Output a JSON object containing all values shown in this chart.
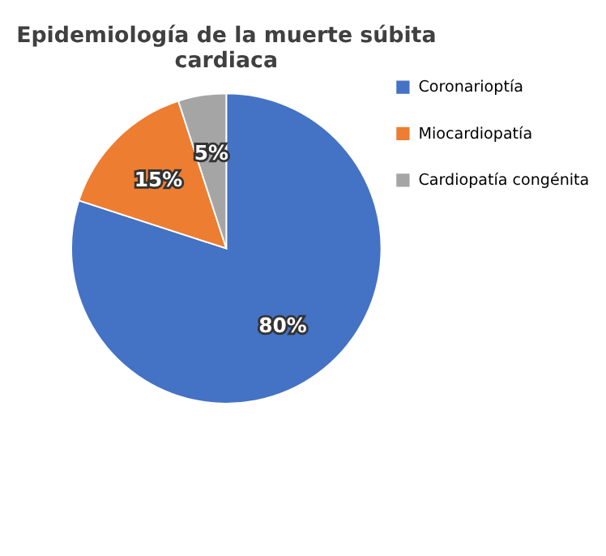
{
  "chart_data": {
    "type": "pie",
    "title": "Epidemiología de la muerte súbita cardiaca",
    "categories": [
      "Coronarioptía",
      "Miocardiopatía",
      "Cardiopatía congénita"
    ],
    "values": [
      80,
      15,
      5
    ],
    "colors": [
      "#4472c4",
      "#ed7d31",
      "#a5a5a5"
    ],
    "value_labels": [
      "80%",
      "15%",
      "5%"
    ],
    "legend": "right"
  }
}
